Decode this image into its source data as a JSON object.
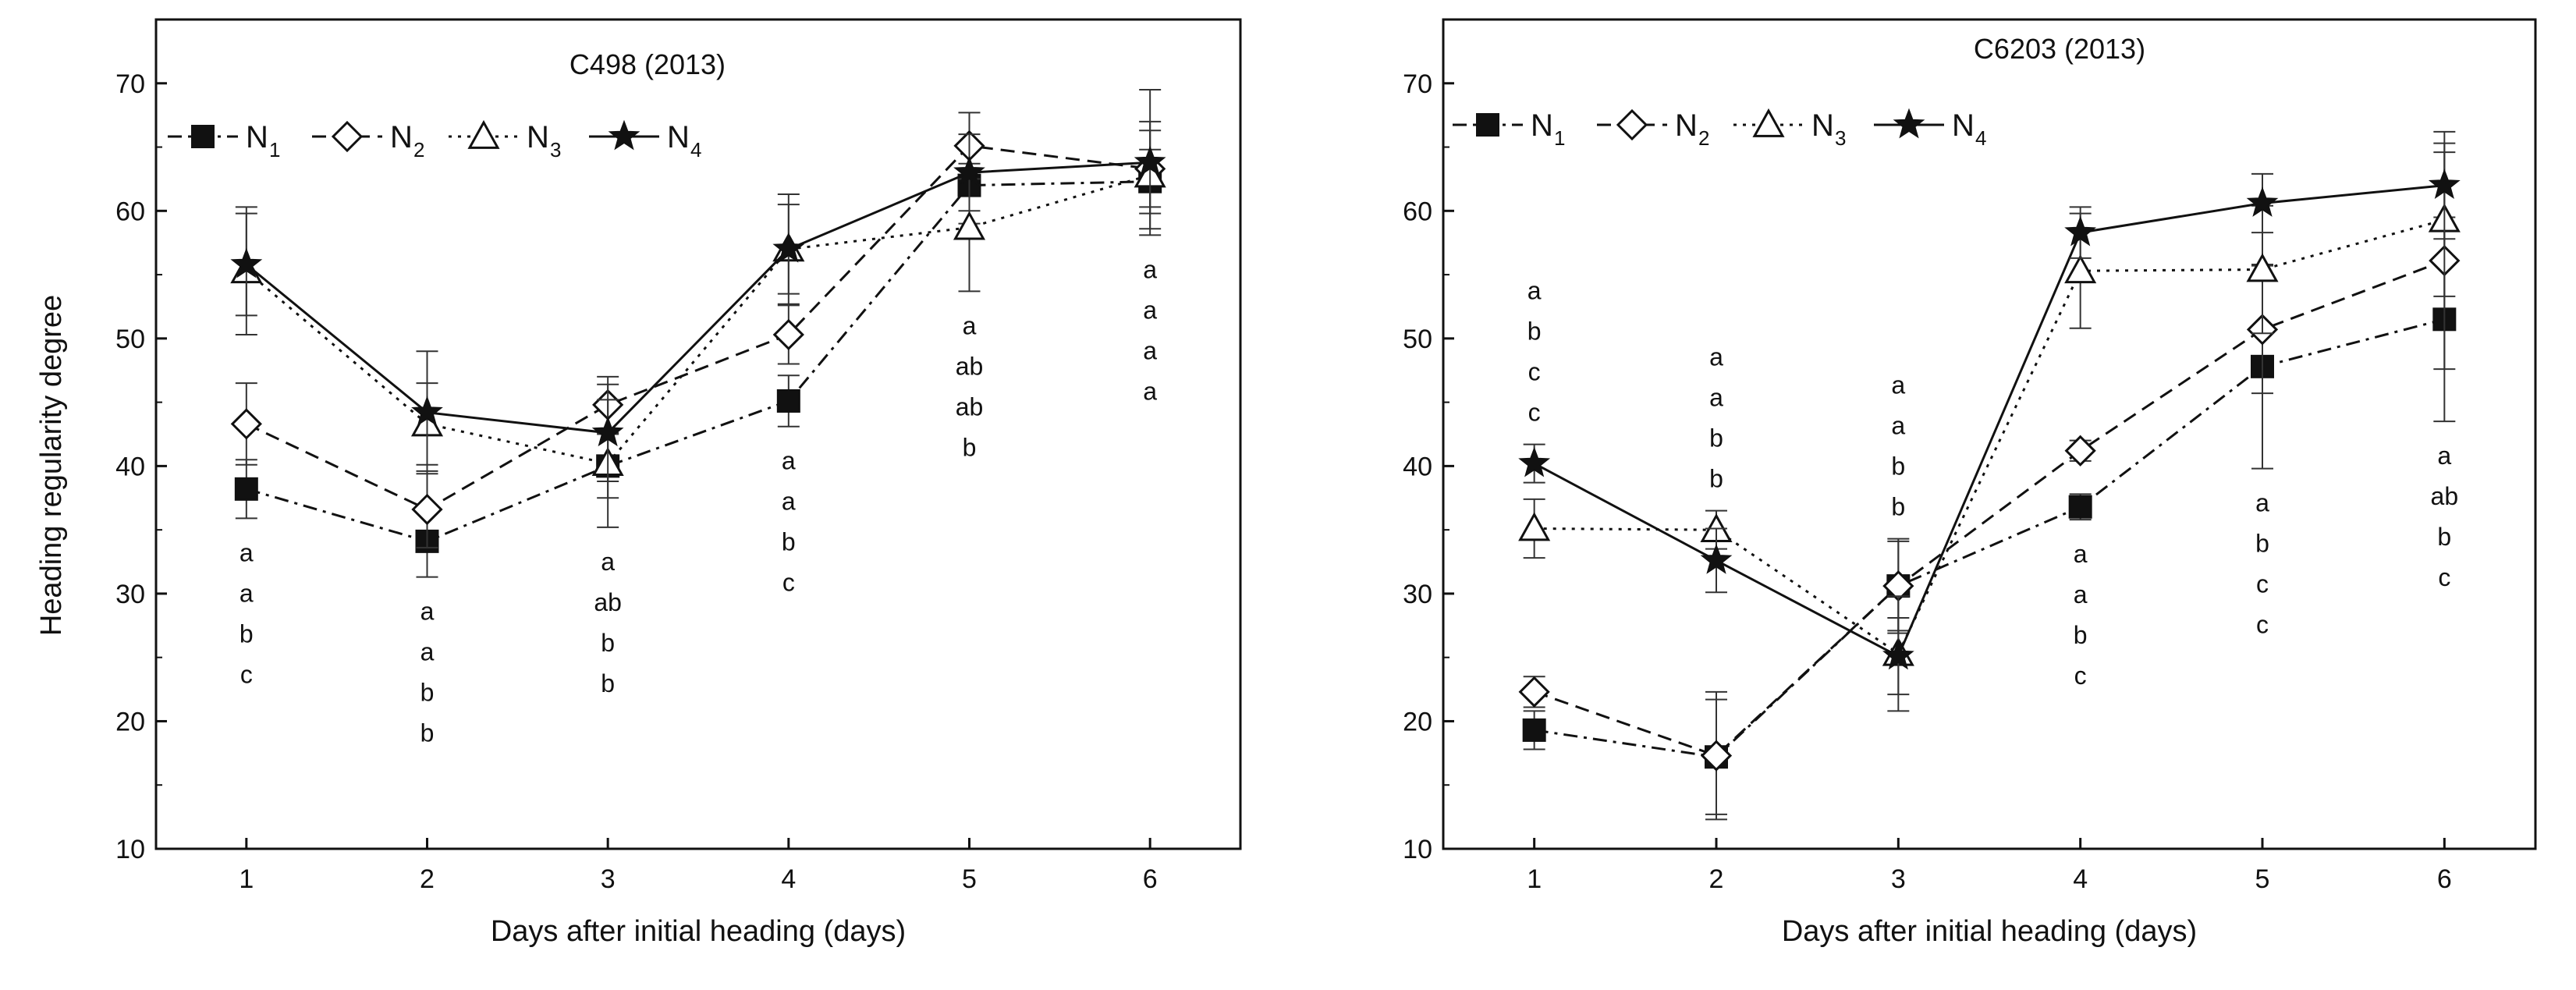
{
  "chart_data": [
    {
      "type": "line",
      "title": "C498 (2013)",
      "xlabel": "Days after initial heading (days)",
      "ylabel": "Heading regularity degree",
      "x": [
        1,
        2,
        3,
        4,
        5,
        6
      ],
      "xlim": [
        0.5,
        6.5
      ],
      "ylim": [
        10,
        75
      ],
      "xticks": [
        "1",
        "2",
        "3",
        "4",
        "5",
        "6"
      ],
      "yticks": [
        "10",
        "20",
        "30",
        "40",
        "50",
        "60",
        "70"
      ],
      "legend_position": "top-left",
      "series": [
        {
          "name": "N",
          "sub": "1",
          "marker": "filled-square",
          "line": "dashdot",
          "values": [
            38.2,
            34.1,
            40.0,
            45.1,
            62.0,
            62.3
          ],
          "errors": [
            2.3,
            2.8,
            2.5,
            2.0,
            3.0,
            2.5
          ]
        },
        {
          "name": "N",
          "sub": "2",
          "marker": "open-diamond",
          "line": "dashed",
          "values": [
            43.3,
            36.6,
            44.8,
            50.3,
            65.1,
            63.3
          ],
          "errors": [
            3.2,
            3.0,
            2.2,
            2.3,
            2.6,
            3.0
          ]
        },
        {
          "name": "N",
          "sub": "3",
          "marker": "open-triangle",
          "line": "dotted",
          "values": [
            55.3,
            43.3,
            40.2,
            57.0,
            58.7,
            62.8
          ],
          "errors": [
            5.0,
            3.2,
            5.0,
            3.5,
            5.0,
            4.2
          ]
        },
        {
          "name": "N",
          "sub": "4",
          "marker": "filled-star",
          "line": "solid",
          "values": [
            55.8,
            44.2,
            42.6,
            57.0,
            63.0,
            63.8
          ],
          "errors": [
            4.0,
            4.8,
            3.8,
            4.3,
            3.0,
            5.7
          ]
        }
      ],
      "letters": [
        {
          "x": 1,
          "items": [
            "a",
            "a",
            "b",
            "c"
          ]
        },
        {
          "x": 2,
          "items": [
            "a",
            "a",
            "b",
            "b"
          ]
        },
        {
          "x": 3,
          "items": [
            "a",
            "ab",
            "b",
            "b"
          ]
        },
        {
          "x": 4,
          "items": [
            "a",
            "a",
            "b",
            "c"
          ]
        },
        {
          "x": 5,
          "items": [
            "a",
            "ab",
            "ab",
            "b"
          ]
        },
        {
          "x": 6,
          "items": [
            "a",
            "a",
            "a",
            "a"
          ]
        }
      ]
    },
    {
      "type": "line",
      "title": "C6203 (2013)",
      "xlabel": "Days after initial heading (days)",
      "ylabel": "",
      "x": [
        1,
        2,
        3,
        4,
        5,
        6
      ],
      "xlim": [
        0.5,
        6.5
      ],
      "ylim": [
        10,
        75
      ],
      "xticks": [
        "1",
        "2",
        "3",
        "4",
        "5",
        "6"
      ],
      "yticks": [
        "10",
        "20",
        "30",
        "40",
        "50",
        "60",
        "70"
      ],
      "legend_position": "top-left",
      "series": [
        {
          "name": "N",
          "sub": "1",
          "marker": "filled-square",
          "line": "dashdot",
          "values": [
            19.3,
            17.2,
            30.6,
            36.8,
            47.8,
            51.5
          ],
          "errors": [
            1.5,
            4.5,
            3.5,
            1.0,
            8.0,
            8.0
          ]
        },
        {
          "name": "N",
          "sub": "2",
          "marker": "open-diamond",
          "line": "dashed",
          "values": [
            22.3,
            17.3,
            30.6,
            41.2,
            50.7,
            56.1
          ],
          "errors": [
            1.2,
            5.0,
            3.7,
            0.8,
            5.0,
            8.5
          ]
        },
        {
          "name": "N",
          "sub": "3",
          "marker": "open-triangle",
          "line": "dotted",
          "values": [
            35.1,
            35.0,
            25.3,
            55.3,
            55.4,
            59.3
          ],
          "errors": [
            2.3,
            1.5,
            4.5,
            4.5,
            5.0,
            6.0
          ]
        },
        {
          "name": "N",
          "sub": "4",
          "marker": "filled-star",
          "line": "solid",
          "values": [
            40.2,
            32.6,
            25.1,
            58.3,
            60.6,
            62.0
          ],
          "errors": [
            1.5,
            2.5,
            3.0,
            2.0,
            2.3,
            4.2
          ]
        }
      ],
      "letters": [
        {
          "x": 1,
          "items": [
            "a",
            "b",
            "c",
            "c"
          ]
        },
        {
          "x": 2,
          "items": [
            "a",
            "a",
            "b",
            "b"
          ]
        },
        {
          "x": 3,
          "items": [
            "a",
            "a",
            "b",
            "b"
          ]
        },
        {
          "x": 4,
          "items": [
            "a",
            "a",
            "b",
            "c"
          ]
        },
        {
          "x": 5,
          "items": [
            "a",
            "b",
            "c",
            "c"
          ]
        },
        {
          "x": 6,
          "items": [
            "a",
            "ab",
            "b",
            "c"
          ]
        }
      ]
    }
  ]
}
